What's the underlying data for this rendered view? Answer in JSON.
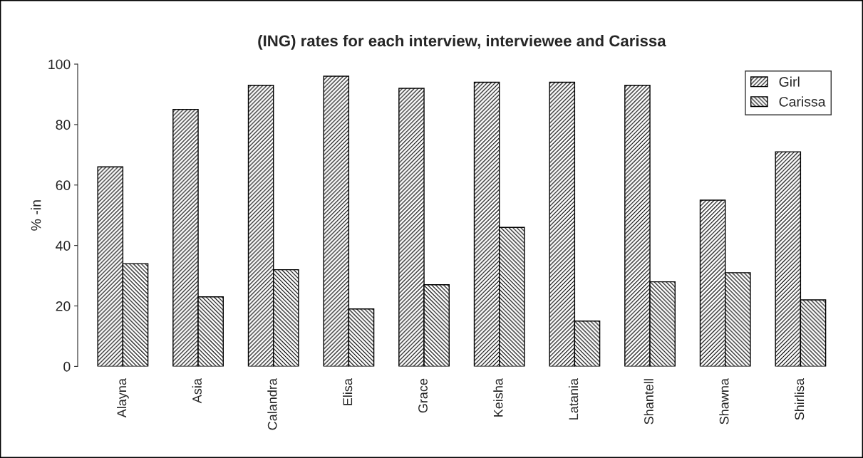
{
  "chart_data": {
    "type": "bar",
    "title": "(ING) rates for each interview, interviewee and Carissa",
    "ylabel": "% -in",
    "categories": [
      "Alayna",
      "Asia",
      "Calandra",
      "Elisa",
      "Grace",
      "Keisha",
      "Latania",
      "Shantell",
      "Shawna",
      "Shirlisa"
    ],
    "series": [
      {
        "name": "Girl",
        "color": "#000000",
        "values": [
          66,
          85,
          93,
          96,
          92,
          94,
          94,
          93,
          55,
          71
        ]
      },
      {
        "name": "Carissa",
        "color": "#000000",
        "values": [
          34,
          23,
          32,
          19,
          27,
          46,
          15,
          28,
          31,
          22
        ]
      }
    ],
    "ylim": [
      0,
      100
    ],
    "yticks": [
      0,
      20,
      40,
      60,
      80,
      100
    ],
    "grid": false,
    "legend": "top right"
  }
}
